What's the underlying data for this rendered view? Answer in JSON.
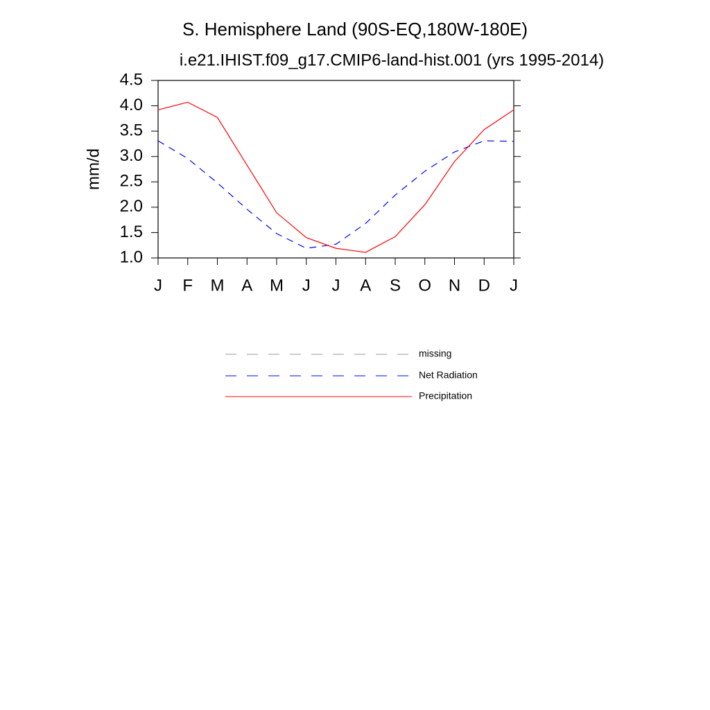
{
  "chart_data": {
    "type": "line",
    "title": "S. Hemisphere Land (90S-EQ,180W-180E)",
    "subtitle": "i.e21.IHIST.f09_g17.CMIP6-land-hist.001 (yrs 1995-2014)",
    "y_label": "mm/d",
    "categories": [
      "J",
      "F",
      "M",
      "A",
      "M",
      "J",
      "J",
      "A",
      "S",
      "O",
      "N",
      "D",
      "J"
    ],
    "series": [
      {
        "name": "missing",
        "color": "#999999",
        "dash": true,
        "values": [
          null,
          null,
          null,
          null,
          null,
          null,
          null,
          null,
          null,
          null,
          null,
          null,
          null
        ]
      },
      {
        "name": "Net Radiation",
        "color": "#0000ff",
        "dash": true,
        "values": [
          3.31,
          2.96,
          2.48,
          1.96,
          1.48,
          1.19,
          1.27,
          1.68,
          2.24,
          2.71,
          3.09,
          3.31,
          3.3
        ]
      },
      {
        "name": "Precipitation",
        "color": "#ff0000",
        "dash": false,
        "values": [
          3.92,
          4.07,
          3.77,
          2.83,
          1.89,
          1.4,
          1.19,
          1.11,
          1.42,
          2.05,
          2.9,
          3.53,
          3.92
        ]
      }
    ],
    "ylim": [
      1.0,
      4.5
    ],
    "yticks": [
      {
        "value": 1,
        "label": "1.0"
      },
      1.5,
      {
        "value": 2,
        "label": "2.0"
      },
      2.5,
      {
        "value": 3,
        "label": "3.0"
      },
      3.5,
      {
        "value": 4,
        "label": "4.0"
      },
      4.5
    ]
  }
}
